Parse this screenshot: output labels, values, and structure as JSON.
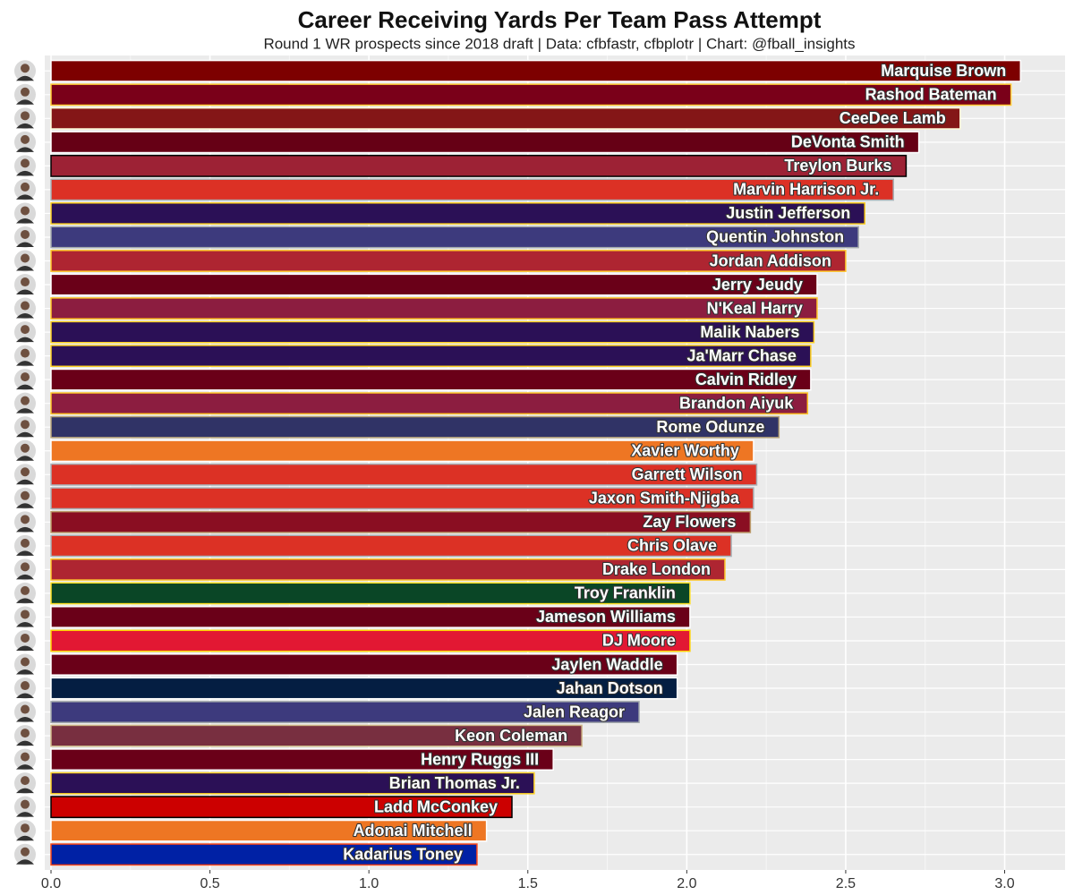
{
  "chart_data": {
    "type": "bar",
    "orientation": "horizontal",
    "title": "Career Receiving Yards Per Team Pass Attempt",
    "subtitle": "Round 1 WR prospects since 2018 draft | Data: cfbfastr, cfbplotr | Chart: @fball_insights",
    "categories": [
      "Marquise Brown",
      "Rashod Bateman",
      "CeeDee Lamb",
      "DeVonta Smith",
      "Treylon Burks",
      "Marvin Harrison Jr.",
      "Justin Jefferson",
      "Quentin Johnston",
      "Jordan Addison",
      "Jerry Jeudy",
      "N'Keal Harry",
      "Malik Nabers",
      "Ja'Marr Chase",
      "Calvin Ridley",
      "Brandon Aiyuk",
      "Rome Odunze",
      "Xavier Worthy",
      "Garrett Wilson",
      "Jaxon Smith-Njigba",
      "Zay Flowers",
      "Chris Olave",
      "Drake London",
      "Troy Franklin",
      "Jameson Williams",
      "DJ Moore",
      "Jaylen Waddle",
      "Jahan Dotson",
      "Jalen Reagor",
      "Keon Coleman",
      "Henry Ruggs III",
      "Brian Thomas Jr.",
      "Ladd McConkey",
      "Adonai Mitchell",
      "Kadarius Toney"
    ],
    "values": [
      3.05,
      3.02,
      2.86,
      2.73,
      2.69,
      2.65,
      2.56,
      2.54,
      2.5,
      2.41,
      2.41,
      2.4,
      2.39,
      2.39,
      2.38,
      2.29,
      2.21,
      2.22,
      2.21,
      2.2,
      2.14,
      2.12,
      2.01,
      2.01,
      2.01,
      1.97,
      1.97,
      1.85,
      1.67,
      1.58,
      1.52,
      1.45,
      1.37,
      1.34
    ],
    "colors": [
      "#7d0000",
      "#7a0019",
      "#841617",
      "#660015",
      "#9d2235",
      "#dc3125",
      "#2b1056",
      "#3d3a7d",
      "#ae2531",
      "#6a0018",
      "#8c1d40",
      "#2b1056",
      "#2b1056",
      "#6a0018",
      "#8c1d40",
      "#303366",
      "#ee7623",
      "#dc3125",
      "#dc3125",
      "#8a0e22",
      "#dc3125",
      "#ae2531",
      "#0a4626",
      "#6a0018",
      "#e21833",
      "#6a0018",
      "#041e42",
      "#3d3a7d",
      "#782f40",
      "#6a0018",
      "#2b1056",
      "#cc0000",
      "#ee7623",
      "#0021a5"
    ],
    "outline_colors": [
      "#ffffff",
      "#ffcc33",
      "#fdf9d8",
      "#ffffff",
      "#000000",
      "#a7b1b7",
      "#fdd023",
      "#a3a9ac",
      "#ffc72c",
      "#ffffff",
      "#ffc627",
      "#fdd023",
      "#fdd023",
      "#ffffff",
      "#ffc627",
      "#b7a57a",
      "#ffffff",
      "#a7b1b7",
      "#a7b1b7",
      "#bc9b6a",
      "#a7b1b7",
      "#ffc72c",
      "#fee123",
      "#ffffff",
      "#ffd200",
      "#ffffff",
      "#ffffff",
      "#a3a9ac",
      "#ceb888",
      "#ffffff",
      "#fdd023",
      "#000000",
      "#ffffff",
      "#fa4616"
    ],
    "xlim": [
      0,
      3.19
    ],
    "xticks": [
      {
        "value": 0,
        "label": "0.0"
      },
      0.5,
      {
        "value": 1,
        "label": "1.0"
      },
      1.5,
      {
        "value": 2,
        "label": "2.0"
      },
      2.5,
      {
        "value": 3,
        "label": "3.0"
      }
    ],
    "grid": true,
    "minor_grid": true,
    "panel_color": "#ebebeb"
  }
}
